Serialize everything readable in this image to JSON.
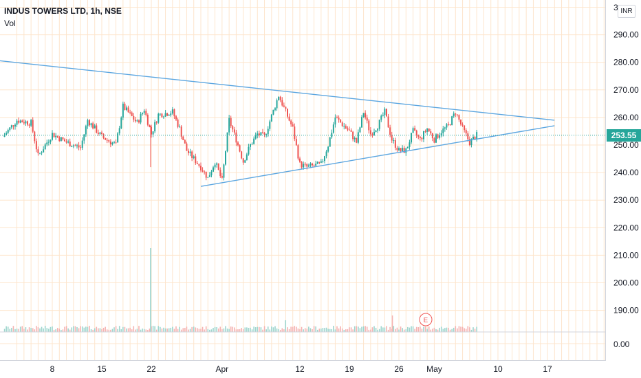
{
  "header": {
    "symbol_line": "INDUS TOWERS LTD, 1h, NSE",
    "volume_label": "Vol"
  },
  "currency_badge": "INR",
  "last_price_label": "253.55",
  "earnings_marker_label": "E",
  "colors": {
    "up": "#26a69a",
    "down": "#ef5350",
    "trendline": "#5ca6e0",
    "grid": "#fde5cc",
    "volume_up": "#9fd5cd",
    "volume_down": "#f5b3b1"
  },
  "chart_data": {
    "type": "candlestick",
    "title": "INDUS TOWERS LTD, 1h, NSE",
    "ylim": [
      180,
      300
    ],
    "y_ticks": [
      "290.00",
      "280.00",
      "270.00",
      "260.00",
      "250.00",
      "240.00",
      "230.00",
      "220.00",
      "210.00",
      "200.00",
      "190.00"
    ],
    "y_top_partial": "3",
    "volume_axis_label": "0.00",
    "x_ticks": [
      "8",
      "15",
      "22",
      "Apr",
      "12",
      "19",
      "26",
      "May",
      "10",
      "17"
    ],
    "last_price": 253.55,
    "price_path": [
      {
        "date": "Mar 1",
        "close": 253
      },
      {
        "date": "Mar 3",
        "close": 259
      },
      {
        "date": "Mar 5",
        "close": 258
      },
      {
        "date": "Mar 6",
        "close": 246
      },
      {
        "date": "Mar 8",
        "close": 254
      },
      {
        "date": "Mar 10",
        "close": 251
      },
      {
        "date": "Mar 12",
        "close": 249
      },
      {
        "date": "Mar 13",
        "close": 259
      },
      {
        "date": "Mar 15",
        "close": 253
      },
      {
        "date": "Mar 17",
        "close": 250
      },
      {
        "date": "Mar 18",
        "close": 264
      },
      {
        "date": "Mar 20",
        "close": 258
      },
      {
        "date": "Mar 21",
        "close": 263
      },
      {
        "date": "Mar 22",
        "close": 254
      },
      {
        "date": "Mar 23",
        "close": 261
      },
      {
        "date": "Mar 25",
        "close": 262
      },
      {
        "date": "Mar 26",
        "close": 256
      },
      {
        "date": "Mar 27",
        "close": 248
      },
      {
        "date": "Mar 29",
        "close": 242
      },
      {
        "date": "Mar 30",
        "close": 238
      },
      {
        "date": "Mar 31",
        "close": 244
      },
      {
        "date": "Apr 1",
        "close": 237
      },
      {
        "date": "Apr 2",
        "close": 259
      },
      {
        "date": "Apr 3",
        "close": 252
      },
      {
        "date": "Apr 4",
        "close": 244
      },
      {
        "date": "Apr 5",
        "close": 250
      },
      {
        "date": "Apr 6",
        "close": 254
      },
      {
        "date": "Apr 7",
        "close": 253
      },
      {
        "date": "Apr 9",
        "close": 268
      },
      {
        "date": "Apr 10",
        "close": 262
      },
      {
        "date": "Apr 11",
        "close": 256
      },
      {
        "date": "Apr 12",
        "close": 243
      },
      {
        "date": "Apr 13",
        "close": 242
      },
      {
        "date": "Apr 15",
        "close": 243
      },
      {
        "date": "Apr 16",
        "close": 250
      },
      {
        "date": "Apr 17",
        "close": 260
      },
      {
        "date": "Apr 19",
        "close": 255
      },
      {
        "date": "Apr 20",
        "close": 251
      },
      {
        "date": "Apr 21",
        "close": 262
      },
      {
        "date": "Apr 22",
        "close": 254
      },
      {
        "date": "Apr 23",
        "close": 257
      },
      {
        "date": "Apr 24",
        "close": 262
      },
      {
        "date": "Apr 25",
        "close": 252
      },
      {
        "date": "Apr 26",
        "close": 248
      },
      {
        "date": "Apr 27",
        "close": 248
      },
      {
        "date": "Apr 28",
        "close": 255
      },
      {
        "date": "Apr 29",
        "close": 252
      },
      {
        "date": "Apr 30",
        "close": 256
      },
      {
        "date": "May 1",
        "close": 252
      },
      {
        "date": "May 2",
        "close": 255
      },
      {
        "date": "May 3",
        "close": 257
      },
      {
        "date": "May 4",
        "close": 262
      },
      {
        "date": "May 5",
        "close": 256
      },
      {
        "date": "May 6",
        "close": 251
      },
      {
        "date": "May 7",
        "close": 253.55
      }
    ],
    "trendlines": [
      {
        "name": "upper",
        "from": {
          "date": "Feb 28",
          "price": 281
        },
        "to": {
          "date": "May 18",
          "price": 259
        }
      },
      {
        "name": "lower",
        "from": {
          "date": "Mar 29",
          "price": 235
        },
        "to": {
          "date": "May 18",
          "price": 257
        }
      }
    ]
  }
}
